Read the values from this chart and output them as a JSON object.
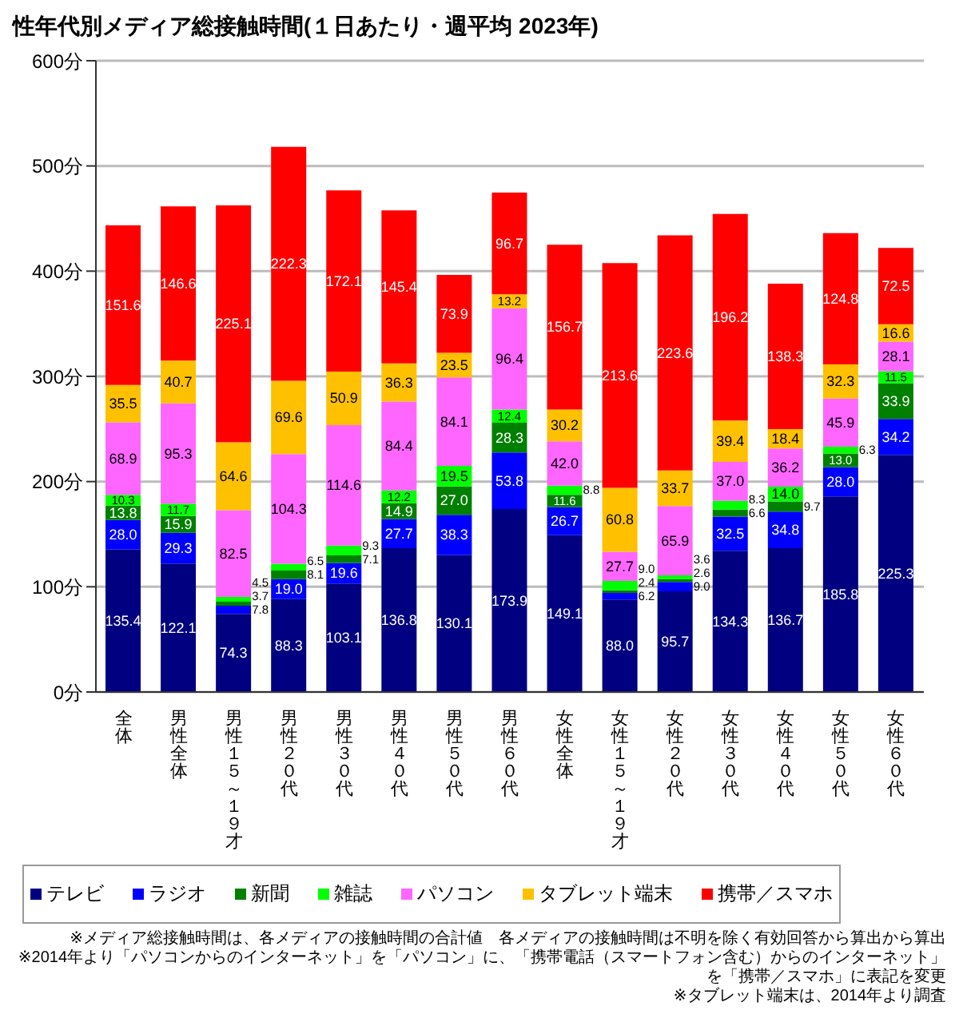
{
  "chart_data": {
    "type": "bar",
    "stacked": true,
    "title": "性年代別メディア総接触時間(１日あたり・週平均 2023年)",
    "categories": [
      "全体",
      "男性全体",
      "男性１５～１９才",
      "男性２０代",
      "男性３０代",
      "男性４０代",
      "男性５０代",
      "男性６０代",
      "女性全体",
      "女性１５～１９才",
      "女性２０代",
      "女性３０代",
      "女性４０代",
      "女性５０代",
      "女性６０代"
    ],
    "series": [
      {
        "name": "テレビ",
        "color": "#000080",
        "values": [
          135.4,
          122.1,
          74.3,
          88.3,
          103.1,
          136.8,
          130.1,
          173.9,
          149.1,
          88.0,
          95.7,
          134.3,
          136.7,
          185.8,
          225.3
        ],
        "value_labels": [
          "135.4",
          "122.1",
          "74.3",
          "88.3",
          "103.1",
          "136.8",
          "130.1",
          "173.9",
          "149.1",
          "88.0",
          "95.7",
          "134.3",
          "136.7",
          "185.8",
          "225.3"
        ]
      },
      {
        "name": "ラジオ",
        "color": "#0000ff",
        "values": [
          28.0,
          29.3,
          7.8,
          19.0,
          19.6,
          27.7,
          38.3,
          53.8,
          26.7,
          6.2,
          9.0,
          32.5,
          34.8,
          28.0,
          34.2
        ],
        "value_labels": [
          "28.0",
          "29.3",
          "7.8",
          "19.0",
          "19.6",
          "27.7",
          "38.3",
          "53.8",
          "26.7",
          "6.2",
          "9.0",
          "32.5",
          "34.8",
          "28.0",
          "34.2"
        ]
      },
      {
        "name": "新聞",
        "color": "#008000",
        "values": [
          13.8,
          15.9,
          3.7,
          8.1,
          7.1,
          14.9,
          27.0,
          28.3,
          11.6,
          2.4,
          2.6,
          6.6,
          9.7,
          13.0,
          33.9
        ],
        "value_labels": [
          "13.8",
          "15.9",
          "3.7",
          "8.1",
          "7.1",
          "14.9",
          "27.0",
          "28.3",
          "11.6",
          "2.4",
          "2.6",
          "6.6",
          "9.7",
          "13.0",
          "33.9"
        ]
      },
      {
        "name": "雑誌",
        "color": "#00ff00",
        "values": [
          10.3,
          11.7,
          4.5,
          6.5,
          9.3,
          12.2,
          19.5,
          12.4,
          8.8,
          9.0,
          3.6,
          8.3,
          14.0,
          6.3,
          11.5
        ],
        "value_labels": [
          "10.3",
          "11.7",
          "4.5",
          "6.5",
          "9.3",
          "12.2",
          "19.5",
          "12.4",
          "8.8",
          "9.0",
          "3.6",
          "8.3",
          "14.0",
          "6.3",
          "11.5"
        ]
      },
      {
        "name": "パソコン",
        "color": "#ff66ff",
        "values": [
          68.9,
          95.3,
          82.5,
          104.3,
          114.6,
          84.4,
          84.1,
          96.4,
          42.0,
          27.7,
          65.9,
          37.0,
          36.2,
          45.9,
          28.1
        ],
        "value_labels": [
          "68.9",
          "95.3",
          "82.5",
          "104.3",
          "114.6",
          "84.4",
          "84.1",
          "96.4",
          "42.0",
          "27.7",
          "65.9",
          "37.0",
          "36.2",
          "45.9",
          "28.1"
        ]
      },
      {
        "name": "タブレット端末",
        "color": "#ffc000",
        "values": [
          35.5,
          40.7,
          64.6,
          69.6,
          50.9,
          36.3,
          23.5,
          13.2,
          30.2,
          60.8,
          33.7,
          39.4,
          18.4,
          32.3,
          16.6
        ],
        "value_labels": [
          "35.5",
          "40.7",
          "64.6",
          "69.6",
          "50.9",
          "36.3",
          "23.5",
          "13.2",
          "30.2",
          "60.8",
          "33.7",
          "39.4",
          "18.4",
          "32.3",
          "16.6"
        ]
      },
      {
        "name": "携帯／スマホ",
        "color": "#ff0000",
        "values": [
          151.6,
          146.6,
          225.1,
          222.3,
          172.1,
          145.4,
          73.9,
          96.7,
          156.7,
          213.6,
          223.6,
          196.2,
          138.3,
          124.8,
          72.5
        ],
        "value_labels": [
          "151.6",
          "146.6",
          "225.1",
          "222.3",
          "172.1",
          "145.4",
          "73.9",
          "96.7",
          "156.7",
          "213.6",
          "223.6",
          "196.2",
          "138.3",
          "124.8",
          "72.5"
        ]
      }
    ],
    "ylim": [
      0,
      600
    ],
    "yticks": [
      {
        "value": 0,
        "label": "0分"
      },
      {
        "value": 100,
        "label": "100分"
      },
      {
        "value": 200,
        "label": "200分"
      },
      {
        "value": 300,
        "label": "300分"
      },
      {
        "value": 400,
        "label": "400分"
      },
      {
        "value": 500,
        "label": "500分"
      },
      {
        "value": 600,
        "label": "600分"
      }
    ],
    "grid": "y",
    "legend": "bottom",
    "annotations": [
      "※メディア総接触時間は、各メディアの接触時間の合計値　各メディアの接触時間は不明を除く有効回答から算出から算出",
      "※2014年より「パソコンからのインターネット」を「パソコン」に、「携帯電話（スマートフォン含む）からのインターネット」を「携帯／スマホ」に表記を変更",
      "※タブレット端末は、2014年より調査"
    ]
  }
}
